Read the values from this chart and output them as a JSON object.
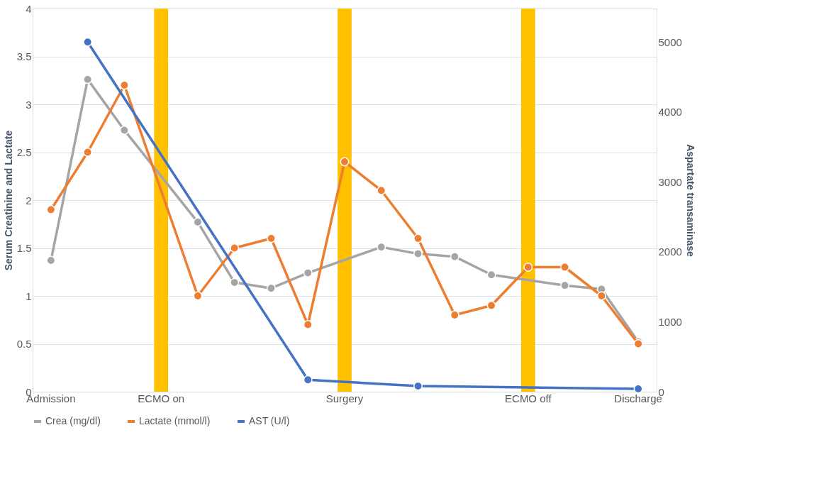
{
  "chart_data": {
    "type": "line",
    "ylabel": "Serum Creatinine and Lactate",
    "y2label": "Aspartate transaminase",
    "categories": [
      "Admission",
      null,
      null,
      "ECMO on",
      null,
      null,
      null,
      null,
      "Surgery",
      null,
      null,
      null,
      null,
      "ECMO off",
      null,
      null,
      "Discharge"
    ],
    "series": [
      {
        "type": "bar",
        "color": "#ffc000",
        "values": [
          null,
          null,
          null,
          4,
          null,
          null,
          null,
          null,
          4,
          null,
          null,
          null,
          null,
          4,
          null,
          null,
          null
        ]
      },
      {
        "name": "Crea (mg/dl)",
        "color": "#a5a5a5",
        "values": [
          1.37,
          3.26,
          2.73,
          null,
          1.77,
          1.14,
          1.08,
          1.24,
          null,
          1.51,
          1.44,
          1.41,
          1.22,
          null,
          1.11,
          1.07,
          0.52
        ]
      },
      {
        "name": "Lactate (mmol/l)",
        "color": "#ed7d31",
        "values": [
          1.9,
          2.5,
          3.2,
          null,
          1.0,
          1.5,
          1.6,
          0.7,
          2.4,
          2.1,
          1.6,
          0.8,
          0.9,
          1.3,
          1.3,
          1.0,
          0.5
        ]
      },
      {
        "name": "AST (U/l)",
        "color": "#4472c4",
        "axis": "y2",
        "values": [
          null,
          5000,
          null,
          null,
          null,
          null,
          null,
          170,
          null,
          null,
          80,
          null,
          null,
          null,
          null,
          null,
          40
        ]
      }
    ],
    "ylim": [
      0,
      4
    ],
    "yticks": [
      0,
      0.5,
      1,
      1.5,
      2,
      2.5,
      3,
      3.5,
      4
    ],
    "y2lim": [
      0,
      5480
    ],
    "y2ticks": [
      0,
      1000,
      2000,
      3000,
      4000,
      5000
    ],
    "grid": "y",
    "legend": "bottom",
    "marker": "circle",
    "line_style": "solid"
  }
}
